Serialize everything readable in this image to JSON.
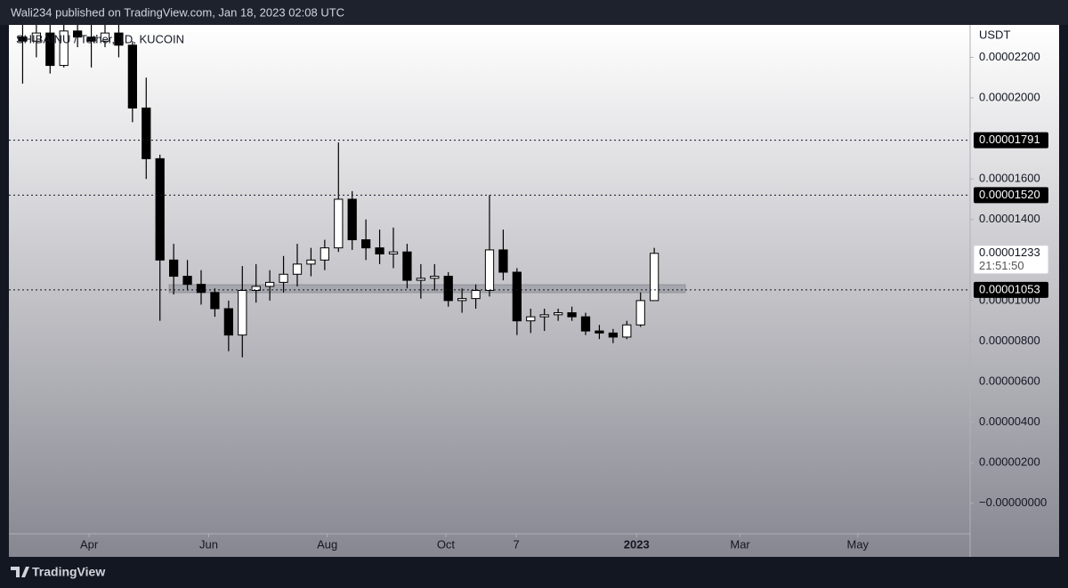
{
  "header": "Wali234 published on TradingView.com, Jan 18, 2023 02:08 UTC",
  "footer": "TradingView",
  "chart_data": {
    "type": "candlestick",
    "title": "SHIBAINU / Tether, 1D, KUCOIN",
    "y_unit": "USDT",
    "up_color": "#ffffff",
    "down_color": "#000000",
    "open": [
      2.3e-05,
      2.28e-05,
      2.32e-05,
      2.16e-05,
      2.33e-05,
      2.3e-05,
      2.28e-05,
      2.32e-05,
      2.26e-05,
      1.95e-05,
      1.7e-05,
      1.2e-05,
      1.12e-05,
      1.08e-05,
      1.04e-05,
      9.6e-06,
      8.3e-06,
      1.05e-05,
      1.07e-05,
      1.09e-05,
      1.13e-05,
      1.18e-05,
      1.2e-05,
      1.26e-05,
      1.5e-05,
      1.3e-05,
      1.26e-05,
      1.23e-05,
      1.24e-05,
      1.1e-05,
      1.11e-05,
      1.12e-05,
      1e-05,
      1.01e-05,
      1.05e-05,
      1.25e-05,
      1.14e-05,
      9e-06,
      9.2e-06,
      9.3e-06,
      9.4e-06,
      9.2e-06,
      8.5e-06,
      8.4e-06,
      8.2e-06,
      8.8e-06,
      1e-05
    ],
    "high": [
      2.36e-05,
      2.36e-05,
      2.36e-05,
      2.36e-05,
      2.36e-05,
      2.36e-05,
      2.36e-05,
      2.36e-05,
      2.28e-05,
      2.1e-05,
      1.72e-05,
      1.28e-05,
      1.2e-05,
      1.15e-05,
      1.06e-05,
      1e-05,
      1.17e-05,
      1.18e-05,
      1.15e-05,
      1.22e-05,
      1.28e-05,
      1.26e-05,
      1.3e-05,
      1.78e-05,
      1.54e-05,
      1.4e-05,
      1.35e-05,
      1.36e-05,
      1.28e-05,
      1.18e-05,
      1.18e-05,
      1.14e-05,
      1.06e-05,
      1.08e-05,
      1.52e-05,
      1.35e-05,
      1.16e-05,
      9.6e-06,
      9.6e-06,
      9.6e-06,
      9.7e-06,
      9.4e-06,
      8.8e-06,
      8.6e-06,
      9e-06,
      1.04e-05,
      1.26e-05
    ],
    "low": [
      2.07e-05,
      2.2e-05,
      2.12e-05,
      2.15e-05,
      2.25e-05,
      2.15e-05,
      2.25e-05,
      2.2e-05,
      1.88e-05,
      1.6e-05,
      9e-06,
      1.03e-05,
      1.05e-05,
      9.8e-06,
      9.2e-06,
      7.5e-06,
      7.2e-06,
      9.9e-06,
      1e-05,
      1.04e-05,
      1.07e-05,
      1.12e-05,
      1.15e-05,
      1.24e-05,
      1.25e-05,
      1.2e-05,
      1.18e-05,
      1.16e-05,
      1.06e-05,
      1.01e-05,
      1.05e-05,
      9.7e-06,
      9.4e-06,
      9.6e-06,
      1.02e-05,
      1.1e-05,
      8.3e-06,
      8.4e-06,
      8.5e-06,
      9e-06,
      9e-06,
      8.3e-06,
      8.1e-06,
      7.9e-06,
      8.1e-06,
      8.7e-06,
      1e-05
    ],
    "close": [
      2.28e-05,
      2.32e-05,
      2.16e-05,
      2.33e-05,
      2.3e-05,
      2.28e-05,
      2.32e-05,
      2.26e-05,
      1.95e-05,
      1.7e-05,
      1.2e-05,
      1.12e-05,
      1.08e-05,
      1.04e-05,
      9.6e-06,
      8.3e-06,
      1.05e-05,
      1.07e-05,
      1.09e-05,
      1.13e-05,
      1.18e-05,
      1.2e-05,
      1.26e-05,
      1.5e-05,
      1.3e-05,
      1.26e-05,
      1.23e-05,
      1.24e-05,
      1.1e-05,
      1.11e-05,
      1.12e-05,
      1e-05,
      1.01e-05,
      1.05e-05,
      1.25e-05,
      1.14e-05,
      9e-06,
      9.2e-06,
      9.3e-06,
      9.4e-06,
      9.2e-06,
      8.5e-06,
      8.4e-06,
      8.2e-06,
      8.8e-06,
      1e-05,
      1.233e-05
    ],
    "xlim": [
      0,
      70
    ],
    "xticks": [
      {
        "value": 5.84,
        "label": "Apr"
      },
      {
        "value": 14.55,
        "label": "Jun"
      },
      {
        "value": 23.18,
        "label": "Aug"
      },
      {
        "value": 31.82,
        "label": "Oct"
      },
      {
        "value": 36.95,
        "label": "7"
      },
      {
        "value": 45.71,
        "label": "2023"
      },
      {
        "value": 53.25,
        "label": "Mar"
      },
      {
        "value": 61.82,
        "label": "May"
      }
    ],
    "ylim": [
      -2.6e-06,
      2.36e-05
    ],
    "yticks": [
      {
        "value": 2.2e-05,
        "label": "0.00002200"
      },
      {
        "value": 2e-05,
        "label": "0.00002000"
      },
      {
        "value": 1.6e-05,
        "label": "0.00001600"
      },
      {
        "value": 1.4e-05,
        "label": "0.00001400"
      },
      {
        "value": 1e-05,
        "label": "0.00001000"
      },
      {
        "value": 8e-06,
        "label": "0.00000800"
      },
      {
        "value": 6e-06,
        "label": "0.00000600"
      },
      {
        "value": 4e-06,
        "label": "0.00000400"
      },
      {
        "value": 2e-06,
        "label": "0.00000200"
      },
      {
        "value": 0,
        "label": "−0.00000000"
      }
    ],
    "levels": [
      1.791e-05,
      {
        "value": 1.52e-05,
        "label": "0.00001520"
      },
      1.053e-05
    ],
    "last_price": 1.233e-05,
    "countdown": "21:51:50"
  }
}
